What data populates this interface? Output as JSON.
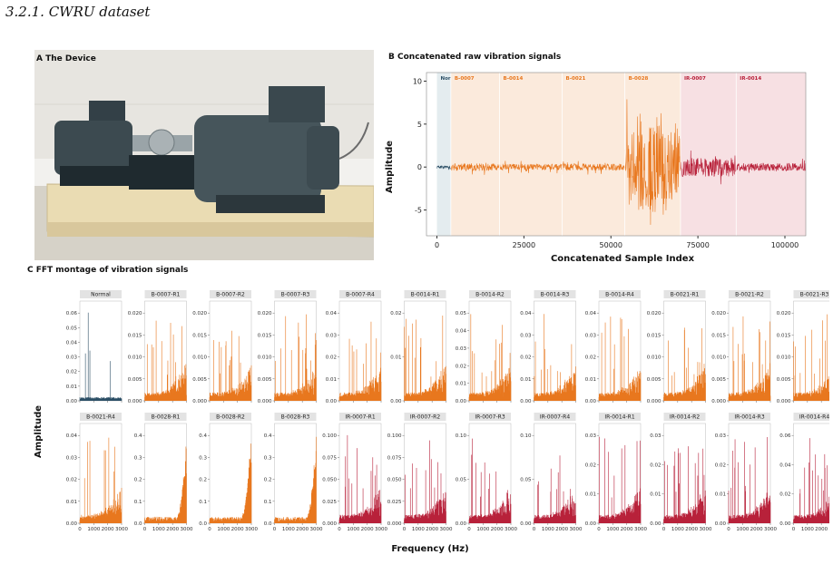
{
  "section_heading": "3.2.1.  CWRU dataset",
  "panel_a": {
    "title": "A The Device"
  },
  "colors": {
    "normal": "#2c4f66",
    "ball": "#e8771e",
    "inner_race": "#b8213a",
    "photo_bg": "#f2f1ee",
    "motor": "#3c4a50",
    "base": "#eadcb3"
  },
  "chart_data": [
    {
      "type": "line",
      "title": "B Concatenated raw vibration signals",
      "xlabel": "Concatenated Sample Index",
      "ylabel": "Amplitude",
      "xlim": [
        -3000,
        106000
      ],
      "ylim": [
        -8,
        11
      ],
      "xticks": [
        0,
        25000,
        50000,
        75000,
        100000
      ],
      "yticks": [
        -5,
        0,
        5,
        10
      ],
      "segments": [
        {
          "label": "Normal",
          "start": 0,
          "end": 4000,
          "class": "normal",
          "amplitude": 0.15
        },
        {
          "label": "B-0007",
          "start": 4000,
          "end": 18000,
          "class": "ball",
          "amplitude": 0.45
        },
        {
          "label": "B-0014",
          "start": 18000,
          "end": 36000,
          "class": "ball",
          "amplitude": 0.35
        },
        {
          "label": "B-0021",
          "start": 36000,
          "end": 54000,
          "class": "ball",
          "amplitude": 0.4
        },
        {
          "label": "B-0028",
          "start": 54000,
          "end": 70000,
          "class": "ball",
          "amplitude": 6.5
        },
        {
          "label": "IR-0007",
          "start": 70000,
          "end": 86000,
          "class": "inner_race",
          "amplitude": 1.1
        },
        {
          "label": "IR-0014",
          "start": 86000,
          "end": 106000,
          "class": "inner_race",
          "amplitude": 0.45
        }
      ],
      "legend": "none",
      "grid": false
    },
    {
      "type": "line",
      "title": "C FFT montage of vibration signals",
      "xlabel": "Frequency (Hz)",
      "ylabel": "Amplitude",
      "xlim": [
        0,
        3000
      ],
      "xticks": [
        0,
        1000,
        2000,
        3000
      ],
      "subplots": [
        {
          "name": "Normal",
          "class": "normal",
          "ymax": 0.06,
          "yticks": [
            "0.00",
            "0.01",
            "0.02",
            "0.03",
            "0.04",
            "0.05",
            "0.06"
          ]
        },
        {
          "name": "B-0007-R1",
          "class": "ball",
          "ymax": 0.025,
          "yticks": [
            "0.000",
            "0.005",
            "0.010",
            "0.015",
            "0.020"
          ]
        },
        {
          "name": "B-0007-R2",
          "class": "ball",
          "ymax": 0.025,
          "yticks": [
            "0.000",
            "0.005",
            "0.010",
            "0.015",
            "0.020"
          ]
        },
        {
          "name": "B-0007-R3",
          "class": "ball",
          "ymax": 0.025,
          "yticks": [
            "0.000",
            "0.005",
            "0.010",
            "0.015",
            "0.020"
          ]
        },
        {
          "name": "B-0007-R4",
          "class": "ball",
          "ymax": 0.04,
          "yticks": [
            "0.00",
            "0.01",
            "0.02",
            "0.03",
            "0.04"
          ]
        },
        {
          "name": "B-0014-R1",
          "class": "ball",
          "ymax": 0.02,
          "yticks": [
            "0.00",
            "0.01",
            "0.02"
          ]
        },
        {
          "name": "B-0014-R2",
          "class": "ball",
          "ymax": 0.05,
          "yticks": [
            "0.00",
            "0.01",
            "0.02",
            "0.03",
            "0.04",
            "0.05"
          ]
        },
        {
          "name": "B-0014-R3",
          "class": "ball",
          "ymax": 0.04,
          "yticks": [
            "0.00",
            "0.01",
            "0.02",
            "0.03",
            "0.04"
          ]
        },
        {
          "name": "B-0014-R4",
          "class": "ball",
          "ymax": 0.04,
          "yticks": [
            "0.00",
            "0.01",
            "0.02",
            "0.03",
            "0.04"
          ]
        },
        {
          "name": "B-0021-R1",
          "class": "ball",
          "ymax": 0.025,
          "yticks": [
            "0.000",
            "0.005",
            "0.010",
            "0.015",
            "0.020"
          ]
        },
        {
          "name": "B-0021-R2",
          "class": "ball",
          "ymax": 0.025,
          "yticks": [
            "0.000",
            "0.005",
            "0.010",
            "0.015",
            "0.020"
          ]
        },
        {
          "name": "B-0021-R3",
          "class": "ball",
          "ymax": 0.025,
          "yticks": [
            "0.000",
            "0.005",
            "0.010",
            "0.015",
            "0.020"
          ]
        },
        {
          "name": "B-0021-R4",
          "class": "ball",
          "ymax": 0.04,
          "yticks": [
            "0.00",
            "0.01",
            "0.02",
            "0.03",
            "0.04"
          ]
        },
        {
          "name": "B-0028-R1",
          "class": "ball",
          "ymax": 0.4,
          "yticks": [
            "0.0",
            "0.1",
            "0.2",
            "0.3",
            "0.4"
          ]
        },
        {
          "name": "B-0028-R2",
          "class": "ball",
          "ymax": 0.4,
          "yticks": [
            "0.0",
            "0.1",
            "0.2",
            "0.3",
            "0.4"
          ]
        },
        {
          "name": "B-0028-R3",
          "class": "ball",
          "ymax": 0.4,
          "yticks": [
            "0.0",
            "0.1",
            "0.2",
            "0.3",
            "0.4"
          ]
        },
        {
          "name": "IR-0007-R1",
          "class": "inner_race",
          "ymax": 0.1,
          "yticks": [
            "0.000",
            "0.025",
            "0.050",
            "0.075",
            "0.100"
          ]
        },
        {
          "name": "IR-0007-R2",
          "class": "inner_race",
          "ymax": 0.1,
          "yticks": [
            "0.000",
            "0.025",
            "0.050",
            "0.075",
            "0.100"
          ]
        },
        {
          "name": "IR-0007-R3",
          "class": "inner_race",
          "ymax": 0.1,
          "yticks": [
            "0.00",
            "0.05",
            "0.10"
          ]
        },
        {
          "name": "IR-0007-R4",
          "class": "inner_race",
          "ymax": 0.1,
          "yticks": [
            "0.00",
            "0.05",
            "0.10"
          ]
        },
        {
          "name": "IR-0014-R1",
          "class": "inner_race",
          "ymax": 0.04,
          "yticks": [
            "0.00",
            "0.01",
            "0.02",
            "0.03"
          ]
        },
        {
          "name": "IR-0014-R2",
          "class": "inner_race",
          "ymax": 0.04,
          "yticks": [
            "0.00",
            "0.01",
            "0.02",
            "0.03"
          ]
        },
        {
          "name": "IR-0014-R3",
          "class": "inner_race",
          "ymax": 0.04,
          "yticks": [
            "0.00",
            "0.01",
            "0.02",
            "0.03"
          ]
        },
        {
          "name": "IR-0014-R4",
          "class": "inner_race",
          "ymax": 0.06,
          "yticks": [
            "0.00",
            "0.02",
            "0.04",
            "0.06"
          ]
        }
      ]
    }
  ]
}
